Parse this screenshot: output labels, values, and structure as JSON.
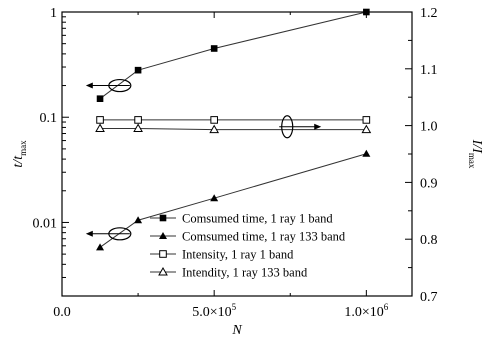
{
  "chart_data": {
    "type": "scatter",
    "title": "",
    "xlabel": "N",
    "ylabel_left": {
      "main": "t/t",
      "sub": "max"
    },
    "ylabel_right": {
      "main": "I/I",
      "sub": "max"
    },
    "x_ticks": [
      {
        "value": 0,
        "label": "0.0"
      },
      {
        "value": 500000,
        "label": "5.0×10",
        "exp": "5"
      },
      {
        "value": 1000000,
        "label": "1.0×10",
        "exp": "6"
      }
    ],
    "xlim": [
      0,
      1150000
    ],
    "y_left": {
      "scale": "log",
      "lim": [
        0.002,
        1
      ],
      "ticks": [
        {
          "value": 1,
          "label": "1"
        },
        {
          "value": 0.1,
          "label": "0.1"
        },
        {
          "value": 0.01,
          "label": "0.01"
        }
      ]
    },
    "y_right": {
      "scale": "linear",
      "lim": [
        0.7,
        1.2
      ],
      "ticks": [
        {
          "value": 1.2,
          "label": "1.2"
        },
        {
          "value": 1.1,
          "label": "1.1"
        },
        {
          "value": 1.0,
          "label": "1.0"
        },
        {
          "value": 0.9,
          "label": "0.9"
        },
        {
          "value": 0.8,
          "label": "0.8"
        },
        {
          "value": 0.7,
          "label": "0.7"
        }
      ]
    },
    "legend_position": "bottom-right",
    "series": [
      {
        "name": "Comsumed time, 1 ray 1 band",
        "axis": "left",
        "marker": "square-filled",
        "x": [
          125000,
          250000,
          500000,
          1000000
        ],
        "y": [
          0.15,
          0.28,
          0.45,
          1.0
        ]
      },
      {
        "name": "Comsumed time, 1 ray 133 band",
        "axis": "left",
        "marker": "triangle-filled",
        "x": [
          125000,
          250000,
          500000,
          1000000
        ],
        "y": [
          0.0058,
          0.0105,
          0.017,
          0.045
        ]
      },
      {
        "name": "Intensity, 1 ray 1 band",
        "axis": "right",
        "marker": "square-open",
        "x": [
          125000,
          250000,
          500000,
          1000000
        ],
        "y": [
          1.01,
          1.01,
          1.01,
          1.01
        ]
      },
      {
        "name": "Intendity, 1 ray 133 band",
        "axis": "right",
        "marker": "triangle-open",
        "x": [
          125000,
          250000,
          500000,
          1000000
        ],
        "y": [
          0.995,
          0.995,
          0.993,
          0.993
        ]
      }
    ],
    "annotations": [
      {
        "kind": "ellipse-arrow-left",
        "at_x": 190000,
        "at_y": 0.2,
        "axis": "left"
      },
      {
        "kind": "ellipse-arrow-left",
        "at_x": 190000,
        "at_y": 0.0078,
        "axis": "left"
      },
      {
        "kind": "ellipse-arrow-right",
        "at_x": 740000,
        "at_y": 0.998,
        "axis": "right"
      }
    ]
  }
}
